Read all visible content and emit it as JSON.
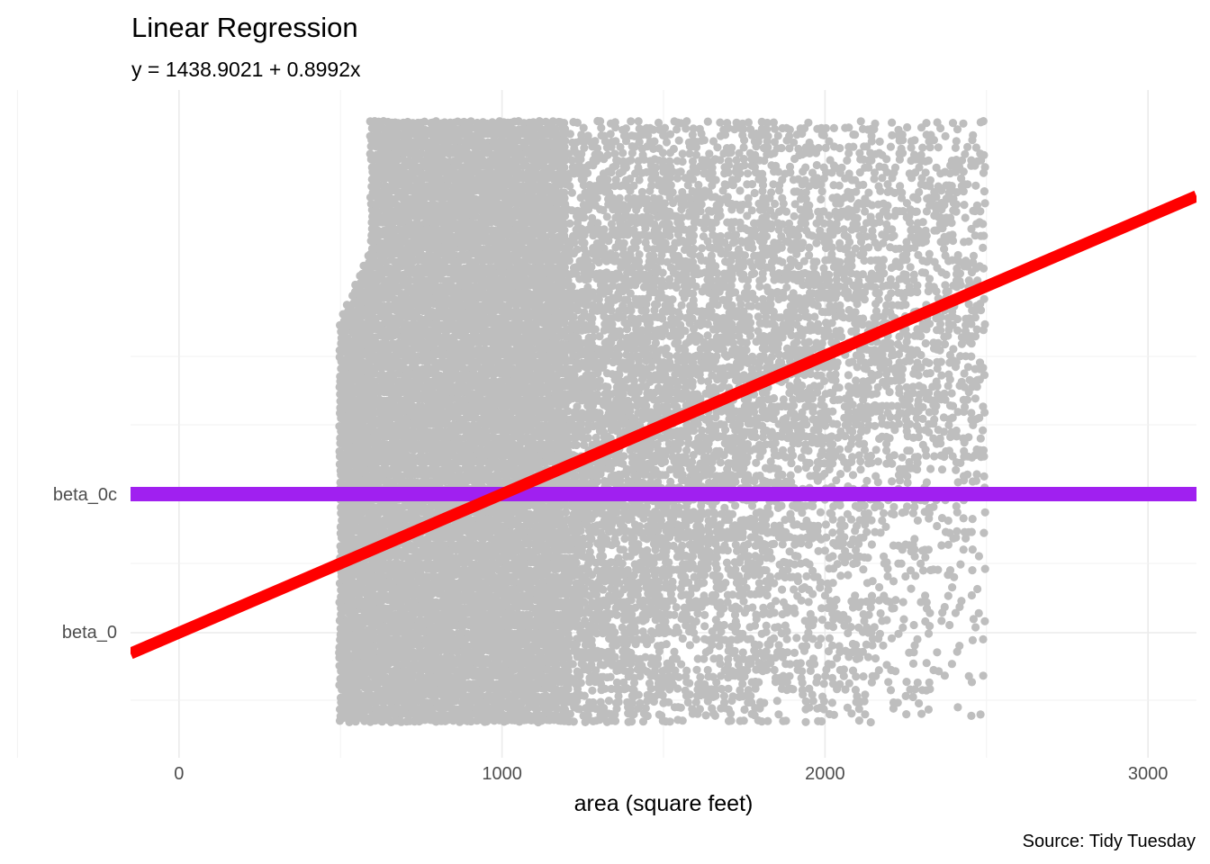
{
  "chart_data": {
    "type": "scatter",
    "title": "Linear Regression",
    "subtitle": "y = 1438.9021 + 0.8992x",
    "xlabel": "area (square feet)",
    "ylabel": "",
    "caption": "Source: Tidy Tuesday",
    "xlim": [
      -150,
      3150
    ],
    "x_ticks": [
      0,
      1000,
      2000,
      3000
    ],
    "y_tick_labels": [
      "beta_0c",
      "beta_0"
    ],
    "grid": true,
    "legend": "none",
    "point_region": {
      "x_range": [
        500,
        2500
      ],
      "color": "#bebebe"
    },
    "regression_line": {
      "intercept": 1438.9021,
      "slope": 0.8992,
      "color": "#ff0000"
    },
    "mean_line": {
      "label": "beta_0c",
      "color": "#a020f0"
    },
    "intercept_label": "beta_0"
  }
}
